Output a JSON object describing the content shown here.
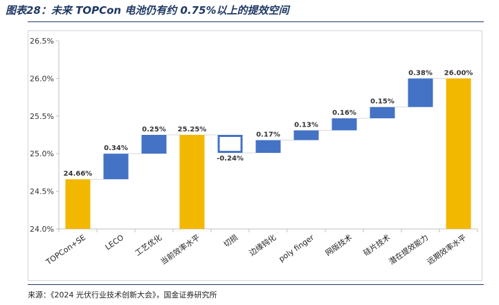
{
  "header": {
    "title": "图表28：未来 TOPCon 电池仍有约 0.75%以上的提效空间"
  },
  "footer": {
    "source": "来源：《2024 光伏行业技术创新大会》，国金证券研究所"
  },
  "chart_data": {
    "type": "bar",
    "subtype": "waterfall",
    "categories": [
      "TOPCon+SE",
      "LECO",
      "工艺优化",
      "当前效率水平",
      "切损",
      "边缘钝化",
      "poly finger",
      "网版技术",
      "硅片技术",
      "潜在提效能力",
      "远期效率水平"
    ],
    "values": [
      24.66,
      0.34,
      0.25,
      25.25,
      -0.24,
      0.17,
      0.13,
      0.16,
      0.15,
      0.38,
      26.0
    ],
    "kinds": [
      "total",
      "delta",
      "delta",
      "total",
      "delta",
      "delta",
      "delta",
      "delta",
      "delta",
      "delta",
      "total"
    ],
    "data_labels": [
      "24.66%",
      "0.34%",
      "0.25%",
      "25.25%",
      "-0.24%",
      "0.17%",
      "0.13%",
      "0.16%",
      "0.15%",
      "0.38%",
      "26.00%"
    ],
    "ylim": [
      24.0,
      26.5
    ],
    "yticks": [
      24.0,
      24.5,
      25.0,
      25.5,
      26.0,
      26.5
    ],
    "ytick_labels": [
      "24.0%",
      "24.5%",
      "25.0%",
      "25.5%",
      "26.0%",
      "26.5%"
    ],
    "colors": {
      "total": "#f2b800",
      "increase": "#4472c4",
      "decrease_border": "#4472c4",
      "decrease_fill": "#ffffff",
      "axis": "#bfbfbf",
      "connector": "#d9d9d9"
    },
    "grid": false,
    "legend": "none"
  }
}
